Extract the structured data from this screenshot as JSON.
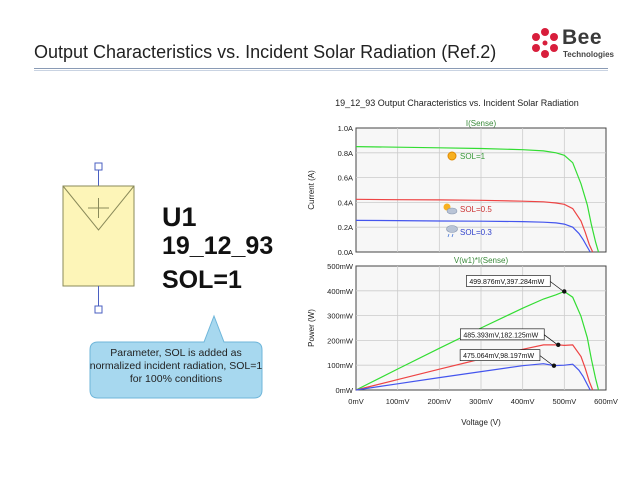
{
  "slide": {
    "title": "Output Characteristics vs. Incident Solar Radiation (Ref.2)",
    "logo_word": "Bee",
    "logo_sub": "Technologies",
    "logo_color": "#d81e3c"
  },
  "symbol": {
    "name": "U1",
    "model": "19_12_93",
    "param": "SOL=1",
    "fill_color": "#fdf5b8"
  },
  "callout": {
    "line1": "Parameter, SOL is added as",
    "line2": "normalized incident radiation, SOL=1",
    "line3": "for 100% conditions",
    "fill_color": "#a7d8ef"
  },
  "chart_data": {
    "type": "line",
    "title": "19_12_93 Output Characteristics vs. Incident Solar Radiation",
    "xlabel": "Voltage (V)",
    "x_ticks": [
      "0mV",
      "100mV",
      "200mV",
      "300mV",
      "400mV",
      "500mV",
      "600mV"
    ],
    "xlim": [
      0,
      600
    ],
    "panels": [
      {
        "name": "current",
        "header": "I(Sense)",
        "ylabel": "Current (A)",
        "ylim": [
          0,
          1
        ],
        "y_ticks": [
          "0.0A",
          "0.2A",
          "0.4A",
          "0.6A",
          "0.8A",
          "1.0A"
        ],
        "series": [
          {
            "name": "SOL=1",
            "color": "#33dd33",
            "x": [
              0,
              100,
              200,
              300,
              400,
              450,
              480,
              500,
              520,
              540,
              555,
              565,
              575,
              582
            ],
            "y": [
              0.85,
              0.845,
              0.84,
              0.835,
              0.825,
              0.815,
              0.8,
              0.78,
              0.72,
              0.55,
              0.38,
              0.22,
              0.08,
              0
            ]
          },
          {
            "name": "SOL=0.5",
            "color": "#ee4444",
            "x": [
              0,
              100,
              200,
              300,
              400,
              450,
              480,
              500,
              520,
              540,
              550,
              560,
              568
            ],
            "y": [
              0.425,
              0.422,
              0.42,
              0.417,
              0.41,
              0.405,
              0.395,
              0.385,
              0.35,
              0.25,
              0.16,
              0.06,
              0
            ]
          },
          {
            "name": "SOL=0.3",
            "color": "#4455ee",
            "x": [
              0,
              100,
              200,
              300,
              400,
              450,
              480,
              500,
              520,
              535,
              545,
              555,
              562
            ],
            "y": [
              0.255,
              0.253,
              0.25,
              0.248,
              0.245,
              0.24,
              0.235,
              0.225,
              0.2,
              0.15,
              0.1,
              0.04,
              0
            ]
          }
        ]
      },
      {
        "name": "power",
        "header": "V(w1)*I(Sense)",
        "ylabel": "Power (W)",
        "ylim": [
          0,
          500
        ],
        "y_ticks": [
          "0mW",
          "100mW",
          "200mW",
          "300mW",
          "400mW",
          "500mW"
        ],
        "series": [
          {
            "name": "SOL=1",
            "color": "#33dd33",
            "x": [
              0,
              100,
              200,
              300,
              400,
              450,
              480,
              499.876,
              520,
              540,
              555,
              565,
              575,
              582
            ],
            "y": [
              0,
              84.5,
              168,
              250,
              330,
              367,
              384,
              397.284,
              374,
              297,
              211,
              124,
              46,
              0
            ]
          },
          {
            "name": "SOL=0.5",
            "color": "#ee4444",
            "x": [
              0,
              100,
              200,
              300,
              400,
              450,
              485.393,
              500,
              520,
              540,
              550,
              560,
              568
            ],
            "y": [
              0,
              42,
              84,
              125,
              164,
              182,
              182.125,
              180,
              182,
              135,
              88,
              34,
              0
            ]
          },
          {
            "name": "SOL=0.3",
            "color": "#4455ee",
            "x": [
              0,
              100,
              200,
              300,
              400,
              450,
              475.064,
              500,
              520,
              535,
              545,
              555,
              562
            ],
            "y": [
              0,
              25,
              50,
              74,
              98,
              106,
              98.197,
              100,
              104,
              80,
              55,
              22,
              0
            ]
          }
        ],
        "annotations": [
          {
            "label": "499.876mV,397.284mW",
            "x": 499.876,
            "y": 397.284
          },
          {
            "label": "485.393mV,182.125mW",
            "x": 485.393,
            "y": 182.125
          },
          {
            "label": "475.064mV,98.197mW",
            "x": 475.064,
            "y": 98.197
          }
        ]
      }
    ],
    "grid": true,
    "plot_background": "#f7f7f7"
  }
}
